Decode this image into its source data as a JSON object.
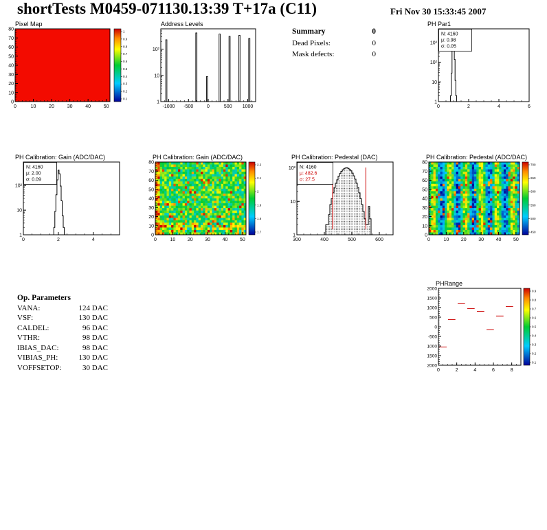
{
  "header": {
    "title": "shortTests M0459-071130.13:39 T+17a (C11)",
    "date": "Fri Nov 30 15:33:45 2007"
  },
  "summary": {
    "title": "Summary",
    "value": "0",
    "rows": [
      {
        "label": "Dead Pixels:",
        "value": "0"
      },
      {
        "label": "Mask defects:",
        "value": "0"
      }
    ]
  },
  "op_parameters": {
    "title": "Op. Parameters",
    "rows": [
      {
        "label": "VANA:",
        "value": "124 DAC"
      },
      {
        "label": "VSF:",
        "value": "130 DAC"
      },
      {
        "label": "CALDEL:",
        "value": "96 DAC"
      },
      {
        "label": "VTHR:",
        "value": "98 DAC"
      },
      {
        "label": "IBIAS_DAC:",
        "value": "98 DAC"
      },
      {
        "label": "VIBIAS_PH:",
        "value": "130 DAC"
      },
      {
        "label": "VOFFSETOP:",
        "value": "30 DAC"
      }
    ]
  },
  "chart_data": [
    {
      "type": "heatmap",
      "title": "Pixel Map",
      "x": {
        "min": 0,
        "max": 52,
        "ticks": [
          0,
          10,
          20,
          30,
          40,
          50
        ],
        "minor": 2
      },
      "y": {
        "min": 0,
        "max": 80,
        "ticks": [
          0,
          10,
          20,
          30,
          40,
          50,
          60,
          70,
          80
        ],
        "minor": 2
      },
      "map": {
        "mode": "uniform",
        "color": "#f30b00",
        "value": 1
      },
      "colorbar": {
        "labels": [
          "1",
          "0.9",
          "0.8",
          "0.7",
          "0.6",
          "0.5",
          "0.4",
          "0.3",
          "0.2",
          "0.1"
        ]
      }
    },
    {
      "type": "spikes",
      "title": "Address Levels",
      "x": {
        "min": -1200,
        "max": 1200,
        "ticks": [
          -1000,
          -500,
          0,
          500,
          1000
        ],
        "minor": 100
      },
      "y": {
        "min": 1,
        "max": 600,
        "log": true,
        "labels": [
          "1",
          "10",
          "10²"
        ]
      },
      "spikes": {
        "width": 30,
        "base": 1,
        "items": [
          [
            -1060,
            230
          ],
          [
            -300,
            420
          ],
          [
            -30,
            9
          ],
          [
            290,
            380
          ],
          [
            540,
            310
          ],
          [
            790,
            340
          ],
          [
            1040,
            260
          ]
        ]
      }
    },
    {
      "type": "hist",
      "title": "PH Par1",
      "x": {
        "min": 0,
        "max": 6,
        "ticks": [
          0,
          2,
          4,
          6
        ],
        "minor": 0.5
      },
      "y": {
        "min": 1,
        "max": 5000,
        "log": true,
        "labels": [
          "1",
          "10",
          "10²",
          "10³"
        ]
      },
      "stats": {
        "w": 48,
        "lines": [
          {
            "text": "N: 4160",
            "color": "#000000"
          },
          {
            "text": "μ: 0.98",
            "color": "#000000"
          },
          {
            "text": "σ: 0.05",
            "color": "#000000"
          }
        ]
      },
      "hist": {
        "binw": 0.05,
        "base": 1,
        "color": "#000000",
        "bins": [
          [
            0.8,
            2
          ],
          [
            0.85,
            28
          ],
          [
            0.9,
            480
          ],
          [
            0.95,
            2300
          ],
          [
            1.0,
            1500
          ],
          [
            1.05,
            140
          ],
          [
            1.1,
            12
          ],
          [
            1.15,
            2
          ]
        ]
      }
    },
    {
      "type": "hist",
      "title": "PH Calibration: Gain (ADC/DAC)",
      "x": {
        "min": 0,
        "max": 5.5,
        "ticks": [
          0,
          2,
          4
        ],
        "minor": 0.5
      },
      "y": {
        "min": 1,
        "max": 900,
        "log": true,
        "labels": [
          "1",
          "10",
          "10²"
        ]
      },
      "stats": {
        "w": 48,
        "lines": [
          {
            "text": "N: 4160",
            "color": "#000000"
          },
          {
            "text": "μ: 2.00",
            "color": "#000000"
          },
          {
            "text": "σ: 0.09",
            "color": "#000000"
          }
        ]
      },
      "hist": {
        "binw": 0.06,
        "base": 1,
        "color": "#000000",
        "bins": [
          [
            1.74,
            2
          ],
          [
            1.8,
            9
          ],
          [
            1.86,
            42
          ],
          [
            1.92,
            170
          ],
          [
            1.98,
            420
          ],
          [
            2.04,
            300
          ],
          [
            2.1,
            95
          ],
          [
            2.16,
            24
          ],
          [
            2.22,
            6
          ],
          [
            2.28,
            2
          ]
        ]
      }
    },
    {
      "type": "heatmap",
      "title": "PH Calibration: Gain (ADC/DAC)",
      "x": {
        "min": 0,
        "max": 52,
        "ticks": [
          0,
          10,
          20,
          30,
          40,
          50
        ],
        "minor": 2
      },
      "y": {
        "min": 0,
        "max": 80,
        "ticks": [
          0,
          10,
          20,
          30,
          40,
          50,
          60,
          70,
          80
        ],
        "minor": 2
      },
      "map": {
        "mode": "gain",
        "cols": 40,
        "rows": 30,
        "seed": 7,
        "vmin": 1.7,
        "vmax": 2.2
      },
      "colorbar": {
        "labels": [
          "2.2",
          "2.1",
          "2",
          "1.9",
          "1.8",
          "1.7"
        ]
      }
    },
    {
      "type": "hist",
      "title": "PH Calibration: Pedestal (DAC)",
      "x": {
        "min": 300,
        "max": 650,
        "ticks": [
          300,
          400,
          500,
          600
        ],
        "minor": 25
      },
      "y": {
        "min": 1,
        "max": 150,
        "log": true,
        "labels": [
          "1",
          "10",
          "10²"
        ]
      },
      "stats": {
        "w": 52,
        "lines": [
          {
            "text": "N: 4160",
            "color": "#000000"
          },
          {
            "text": "μ: 482.6",
            "color": "#cc0000"
          },
          {
            "text": "σ: 27.5",
            "color": "#cc0000"
          }
        ]
      },
      "cut_lines": {
        "color": "#cc0000",
        "items": [
          430,
          551
        ]
      },
      "hist": {
        "binw": 5,
        "base": 1,
        "color": "#000000",
        "fill": "dots",
        "bins": [
          [
            400,
            1
          ],
          [
            405,
            2
          ],
          [
            410,
            2
          ],
          [
            415,
            4
          ],
          [
            420,
            8
          ],
          [
            425,
            12
          ],
          [
            430,
            18
          ],
          [
            435,
            26
          ],
          [
            440,
            35
          ],
          [
            445,
            44
          ],
          [
            450,
            57
          ],
          [
            455,
            68
          ],
          [
            460,
            79
          ],
          [
            465,
            88
          ],
          [
            470,
            95
          ],
          [
            475,
            100
          ],
          [
            480,
            102
          ],
          [
            485,
            97
          ],
          [
            490,
            90
          ],
          [
            495,
            82
          ],
          [
            500,
            70
          ],
          [
            505,
            58
          ],
          [
            510,
            46
          ],
          [
            515,
            35
          ],
          [
            520,
            26
          ],
          [
            525,
            18
          ],
          [
            530,
            12
          ],
          [
            535,
            8
          ],
          [
            540,
            5
          ],
          [
            545,
            3
          ],
          [
            550,
            2
          ],
          [
            555,
            2
          ],
          [
            560,
            7
          ],
          [
            565,
            3
          ],
          [
            570,
            1
          ]
        ]
      }
    },
    {
      "type": "heatmap",
      "title": "PH Calibration: Pedestal (ADC/DAC)",
      "x": {
        "min": 0,
        "max": 52,
        "ticks": [
          0,
          10,
          20,
          30,
          40,
          50
        ],
        "minor": 2
      },
      "y": {
        "min": 0,
        "max": 80,
        "ticks": [
          0,
          10,
          20,
          30,
          40,
          50,
          60,
          70,
          80
        ],
        "minor": 2
      },
      "map": {
        "mode": "pedestal",
        "cols": 40,
        "rows": 30,
        "seed": 13,
        "vmin": 400,
        "vmax": 700
      },
      "colorbar": {
        "labels": [
          "700",
          "650",
          "600",
          "550",
          "500",
          "450"
        ]
      }
    },
    {
      "type": "segments",
      "title": "PHRange",
      "x": {
        "min": 0,
        "max": 9,
        "ticks": [
          0,
          2,
          4,
          6,
          8
        ],
        "minor": 0.5
      },
      "y": {
        "min": -2000,
        "max": 2000,
        "ticks": [
          2000,
          1500,
          1000,
          500,
          0,
          -500,
          -1000,
          -1500,
          -2000
        ],
        "labels": [
          "2000",
          "1500",
          "1000",
          "500",
          "0",
          "-500",
          "1000",
          "1500",
          "2000"
        ],
        "minor": 100,
        "lblsize": 6.5
      },
      "segments": {
        "color": "#cc0000",
        "items": [
          [
            0.1,
            0.9,
            -1050
          ],
          [
            1.05,
            1.85,
            380
          ],
          [
            2.1,
            2.9,
            1200
          ],
          [
            3.15,
            3.95,
            950
          ],
          [
            4.2,
            5.0,
            800
          ],
          [
            5.25,
            6.05,
            -150
          ],
          [
            6.3,
            7.1,
            560
          ],
          [
            7.35,
            8.15,
            1050
          ]
        ]
      },
      "colorbar": {
        "labels": [
          "0.9",
          "0.8",
          "0.7",
          "0.6",
          "0.5",
          "0.4",
          "0.3",
          "0.2",
          "0.1"
        ]
      }
    }
  ]
}
